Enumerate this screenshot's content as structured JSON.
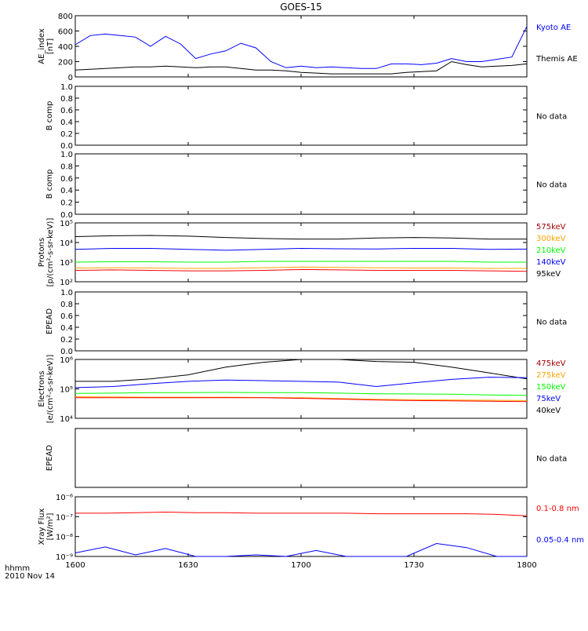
{
  "title": "GOES-15",
  "footer": {
    "line1": "hhmm",
    "line2": "2010 Nov 14"
  },
  "colors": {
    "black": "#000000",
    "blue": "#0000ff",
    "red": "#ff0000",
    "orange": "#ffa500",
    "green": "#00ff00",
    "darkred": "#a00000"
  },
  "x_ticks": [
    "1600",
    "1630",
    "1700",
    "1730",
    "1800"
  ],
  "chart_data": [
    {
      "id": "ae",
      "type": "line",
      "ylabel": [
        "AE_index",
        "[nT]"
      ],
      "yscale": "linear",
      "ylim": [
        0,
        800
      ],
      "yticks": [
        "0",
        "200",
        "400",
        "600",
        "800"
      ],
      "x": [
        0,
        4,
        8,
        12,
        16,
        20,
        24,
        28,
        32,
        36,
        40,
        44,
        48,
        52,
        56,
        60,
        64,
        68,
        72,
        76,
        80,
        84,
        88,
        92,
        96,
        100,
        104,
        108,
        112,
        116,
        120
      ],
      "series": [
        {
          "name": "Kyoto AE",
          "color": "#0000ff",
          "values": [
            420,
            540,
            560,
            540,
            520,
            400,
            530,
            430,
            240,
            300,
            340,
            440,
            380,
            200,
            120,
            140,
            120,
            130,
            120,
            110,
            110,
            170,
            170,
            160,
            180,
            240,
            200,
            200,
            230,
            260,
            660
          ]
        },
        {
          "name": "Themis AE",
          "color": "#000000",
          "values": [
            90,
            100,
            110,
            120,
            130,
            130,
            140,
            130,
            120,
            130,
            130,
            110,
            90,
            90,
            80,
            60,
            50,
            40,
            40,
            40,
            40,
            40,
            60,
            70,
            80,
            200,
            160,
            130,
            140,
            150,
            170
          ]
        }
      ]
    },
    {
      "id": "bcomp1",
      "type": "line",
      "ylabel": [
        "B comp"
      ],
      "yscale": "linear",
      "ylim": [
        0,
        1
      ],
      "yticks": [
        "0.0",
        "0.2",
        "0.4",
        "0.6",
        "0.8",
        "1.0"
      ],
      "series": [],
      "message": "No data"
    },
    {
      "id": "bcomp2",
      "type": "line",
      "ylabel": [
        "B comp"
      ],
      "yscale": "linear",
      "ylim": [
        0,
        1
      ],
      "yticks": [
        "0.0",
        "0.2",
        "0.4",
        "0.6",
        "0.8",
        "1.0"
      ],
      "series": [],
      "message": "No data"
    },
    {
      "id": "protons",
      "type": "line",
      "ylabel": [
        "Protons",
        "[p/(cm²-s-sr-keV)]"
      ],
      "yscale": "log",
      "ylim": [
        100,
        100000
      ],
      "yticks": [
        "10²",
        "10³",
        "10⁴",
        "10⁵"
      ],
      "x": [
        0,
        10,
        20,
        30,
        40,
        50,
        60,
        70,
        80,
        90,
        100,
        110,
        120
      ],
      "series": [
        {
          "name": "575keV",
          "color": "#000000",
          "values": [
            20000,
            22000,
            23000,
            21000,
            18000,
            16000,
            15000,
            15000,
            17000,
            18000,
            17000,
            15000,
            15000
          ]
        },
        {
          "name": "300keV",
          "color": "#0000ff",
          "values": [
            4500,
            5000,
            5000,
            4500,
            4000,
            4500,
            5000,
            4800,
            4700,
            5000,
            5000,
            4500,
            4600
          ]
        },
        {
          "name": "210keV",
          "color": "#00ff00",
          "values": [
            1000,
            1050,
            1050,
            1000,
            1000,
            1100,
            1100,
            1100,
            1100,
            1100,
            1100,
            1000,
            1000
          ]
        },
        {
          "name": "140keV",
          "color": "#ffa500",
          "values": [
            500,
            520,
            500,
            480,
            480,
            520,
            560,
            540,
            520,
            500,
            500,
            480,
            480
          ]
        },
        {
          "name": "95keV",
          "color": "#ff0000",
          "values": [
            380,
            400,
            380,
            360,
            360,
            380,
            420,
            400,
            380,
            380,
            380,
            360,
            340
          ]
        }
      ],
      "legend_colors": [
        "#a00000",
        "#ffa500",
        "#00ff00",
        "#0000ff",
        "#000000"
      ]
    },
    {
      "id": "epead1",
      "type": "line",
      "ylabel": [
        "EPEAD"
      ],
      "yscale": "linear",
      "ylim": [
        0,
        1
      ],
      "yticks": [
        "0.0",
        "0.2",
        "0.4",
        "0.6",
        "0.8",
        "1.0"
      ],
      "series": [],
      "message": "No data"
    },
    {
      "id": "electrons",
      "type": "line",
      "ylabel": [
        "Electrons",
        "[e/(cm²-s-sr-keV)]"
      ],
      "yscale": "log",
      "ylim": [
        10000,
        1000000
      ],
      "yticks": [
        "10⁴",
        "10⁵",
        "10⁶"
      ],
      "x": [
        0,
        10,
        20,
        30,
        40,
        50,
        60,
        70,
        80,
        90,
        100,
        110,
        120
      ],
      "series": [
        {
          "name": "475keV",
          "color": "#000000",
          "values": [
            180000,
            180000,
            220000,
            300000,
            550000,
            800000,
            1000000,
            1000000,
            850000,
            800000,
            550000,
            350000,
            220000
          ]
        },
        {
          "name": "275keV",
          "color": "#0000ff",
          "values": [
            110000,
            120000,
            150000,
            180000,
            200000,
            190000,
            180000,
            170000,
            120000,
            160000,
            210000,
            250000,
            240000
          ]
        },
        {
          "name": "150keV",
          "color": "#00ff00",
          "values": [
            70000,
            72000,
            75000,
            75000,
            76000,
            75000,
            75000,
            72000,
            68000,
            67000,
            66000,
            62000,
            60000
          ]
        },
        {
          "name": "75keV",
          "color": "#ffa500",
          "values": [
            54000,
            53000,
            52000,
            52000,
            52000,
            51000,
            50000,
            47000,
            44000,
            43000,
            42000,
            41000,
            40000
          ]
        },
        {
          "name": "40keV",
          "color": "#ff0000",
          "values": [
            50000,
            50000,
            50000,
            50000,
            50000,
            50000,
            48000,
            45000,
            42000,
            40000,
            39000,
            38000,
            37000
          ]
        }
      ],
      "legend_colors": [
        "#a00000",
        "#ffa500",
        "#00ff00",
        "#0000ff",
        "#000000"
      ]
    },
    {
      "id": "epead2",
      "type": "line",
      "ylabel": [
        "EPEAD"
      ],
      "yscale": "linear",
      "ylim": [
        0,
        1
      ],
      "yticks": [],
      "series": [],
      "message": "No data"
    },
    {
      "id": "xray",
      "type": "line",
      "ylabel": [
        "Xray Flux",
        "[W/m²]"
      ],
      "yscale": "log",
      "ylim": [
        1e-09,
        1e-06
      ],
      "yticks": [
        "10⁻⁹",
        "10⁻⁸",
        "10⁻⁷",
        "10⁻⁶"
      ],
      "x": [
        0,
        8,
        16,
        24,
        32,
        40,
        48,
        56,
        64,
        72,
        80,
        88,
        96,
        104,
        112,
        120
      ],
      "series": [
        {
          "name": "0.1-0.8 nm",
          "color": "#ff0000",
          "values": [
            1.5e-07,
            1.5e-07,
            1.6e-07,
            1.7e-07,
            1.6e-07,
            1.6e-07,
            1.5e-07,
            1.5e-07,
            1.5e-07,
            1.5e-07,
            1.4e-07,
            1.4e-07,
            1.4e-07,
            1.4e-07,
            1.3e-07,
            1.1e-07
          ]
        },
        {
          "name": "0.05-0.4 nm",
          "color": "#0000ff",
          "values": [
            1.5e-09,
            3e-09,
            1.2e-09,
            2.5e-09,
            1e-09,
            1e-09,
            1.2e-09,
            1e-09,
            2e-09,
            1e-09,
            1e-09,
            1e-09,
            4.5e-09,
            2.8e-09,
            1e-09,
            1e-09
          ]
        }
      ]
    }
  ]
}
